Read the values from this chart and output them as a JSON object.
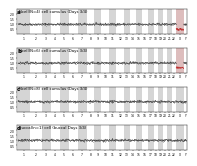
{
  "panels": [
    {
      "label": "a",
      "title": "Ncell(N=4) cell cumulus (Days 3/4)",
      "has_red_x": true
    },
    {
      "label": "b",
      "title": "Ncell(N=6) cell cumulus (Days 3/4)",
      "has_red_x": true
    },
    {
      "label": "c",
      "title": "Ncell(N=8) cell cumulus (Days 3/4)",
      "has_red_x": false
    },
    {
      "label": "d",
      "title": "buccal(n=1) cell (buccal Days 3/4)",
      "has_red_x": false
    }
  ],
  "gray_band_color": "#c8c8c8",
  "line_color": "#3a3a3a",
  "red_color": "#bb2222",
  "red_fill_color": "#e8a0a0",
  "ylim": [
    0.0,
    2.5
  ],
  "yticks": [
    0.5,
    1.0,
    1.5,
    2.0
  ],
  "bg_color": "#ffffff",
  "title_fontsize": 2.8,
  "tick_fontsize": 2.2,
  "label_fontsize": 4.0,
  "chr_widths": [
    8,
    8,
    6,
    6,
    6,
    6,
    6,
    5,
    5,
    5,
    5,
    5,
    4,
    4,
    4,
    4,
    4,
    3,
    3,
    3,
    3,
    3,
    5,
    2
  ],
  "chr_labels": [
    "1",
    "2",
    "3",
    "4",
    "5",
    "6",
    "7",
    "8",
    "9",
    "10",
    "11",
    "12",
    "13",
    "14",
    "15",
    "16",
    "17",
    "18",
    "19",
    "20",
    "21",
    "22",
    "X",
    "Y"
  ]
}
